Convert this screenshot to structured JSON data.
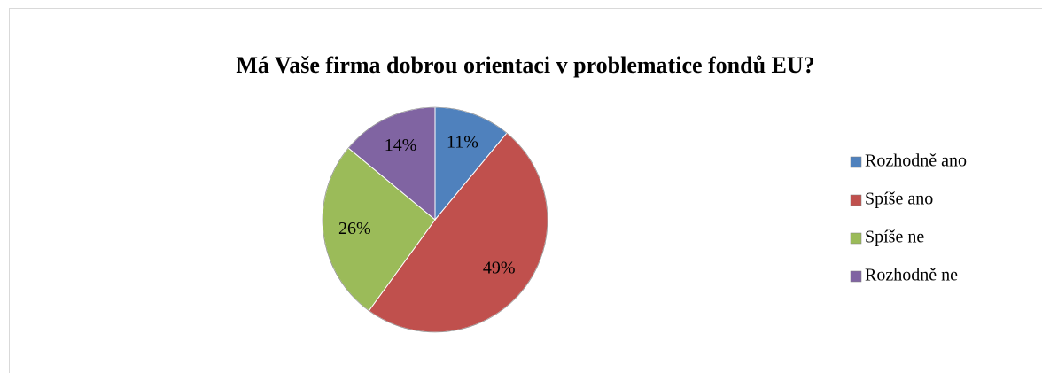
{
  "chart_data": {
    "type": "pie",
    "title": "Má Vaše firma dobrou orientaci v problematice fondů EU?",
    "categories": [
      "Rozhodně ano",
      "Spíše ano",
      "Spíše ne",
      "Rozhodně ne"
    ],
    "values": [
      11,
      49,
      26,
      14
    ],
    "value_labels": [
      "11%",
      "49%",
      "26%",
      "14%"
    ],
    "colors": [
      "#4f81bd",
      "#c0504d",
      "#9bbb59",
      "#8064a2"
    ],
    "legend": "right"
  }
}
